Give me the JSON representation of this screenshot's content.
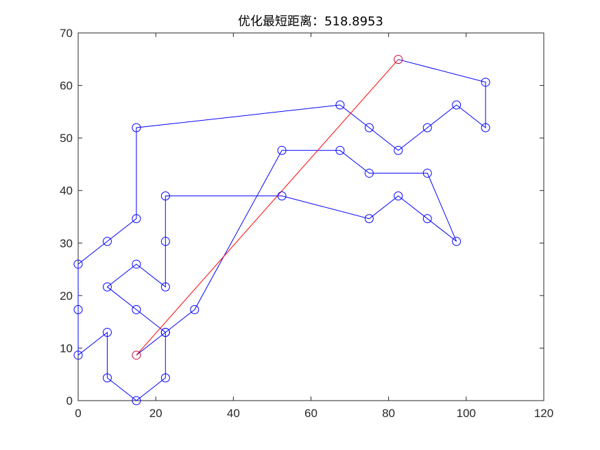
{
  "chart_data": {
    "type": "line",
    "title": "优化最短距离：518.8953",
    "xlabel": "",
    "ylabel": "",
    "xlim": [
      0,
      120
    ],
    "ylim": [
      0,
      70
    ],
    "xticks": [
      "0",
      "20",
      "40",
      "60",
      "80",
      "100",
      "120"
    ],
    "yticks": [
      "0",
      "10",
      "20",
      "30",
      "40",
      "50",
      "60",
      "70"
    ],
    "grid": false,
    "legend": null,
    "colors": {
      "route": "#0000ff",
      "closing": "#ff0000",
      "endpoint": "#c0003a",
      "axis": "#262626"
    },
    "series": [
      {
        "values_description_hidden": true,
        "x": [
          15,
          22.5,
          30,
          52.5,
          67.5,
          75,
          90,
          97.5,
          90,
          82.5,
          75,
          52.5,
          22.5,
          22.5,
          22.5,
          15,
          7.5,
          15,
          22.5,
          22.5,
          15,
          7.5,
          7.5,
          0,
          0,
          0,
          7.5,
          15,
          15,
          67.5,
          75,
          82.5,
          90,
          97.5,
          105,
          105,
          82.5
        ],
        "y": [
          8.66,
          12.99,
          17.32,
          47.63,
          47.63,
          43.3,
          43.3,
          30.31,
          34.64,
          38.97,
          34.64,
          38.97,
          38.97,
          30.31,
          21.65,
          25.98,
          21.65,
          17.32,
          12.99,
          4.33,
          0,
          4.33,
          12.99,
          8.66,
          17.32,
          25.98,
          30.31,
          34.64,
          51.96,
          56.29,
          51.96,
          47.63,
          51.96,
          56.29,
          51.96,
          60.62,
          64.95
        ]
      },
      {
        "x": [
          82.5,
          15
        ],
        "y": [
          64.95,
          8.66
        ]
      }
    ]
  }
}
